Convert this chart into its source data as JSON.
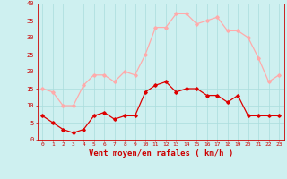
{
  "hours": [
    0,
    1,
    2,
    3,
    4,
    5,
    6,
    7,
    8,
    9,
    10,
    11,
    12,
    13,
    14,
    15,
    16,
    17,
    18,
    19,
    20,
    21,
    22,
    23
  ],
  "wind_avg": [
    7,
    5,
    3,
    2,
    3,
    7,
    8,
    6,
    7,
    7,
    14,
    16,
    17,
    14,
    15,
    15,
    13,
    13,
    11,
    13,
    7,
    7,
    7,
    7
  ],
  "wind_gust": [
    15,
    14,
    10,
    10,
    16,
    19,
    19,
    17,
    20,
    19,
    25,
    33,
    33,
    37,
    37,
    34,
    35,
    36,
    32,
    32,
    30,
    24,
    17,
    19
  ],
  "color_avg": "#dd0000",
  "color_gust": "#ffaaaa",
  "bg_color": "#cef0f0",
  "grid_color": "#aadddd",
  "axis_color": "#cc0000",
  "text_color": "#cc0000",
  "xlabel": "Vent moyen/en rafales ( km/h )",
  "ylim": [
    0,
    40
  ],
  "yticks": [
    0,
    5,
    10,
    15,
    20,
    25,
    30,
    35,
    40
  ],
  "xticks": [
    0,
    1,
    2,
    3,
    4,
    5,
    6,
    7,
    8,
    9,
    10,
    11,
    12,
    13,
    14,
    15,
    16,
    17,
    18,
    19,
    20,
    21,
    22,
    23
  ]
}
